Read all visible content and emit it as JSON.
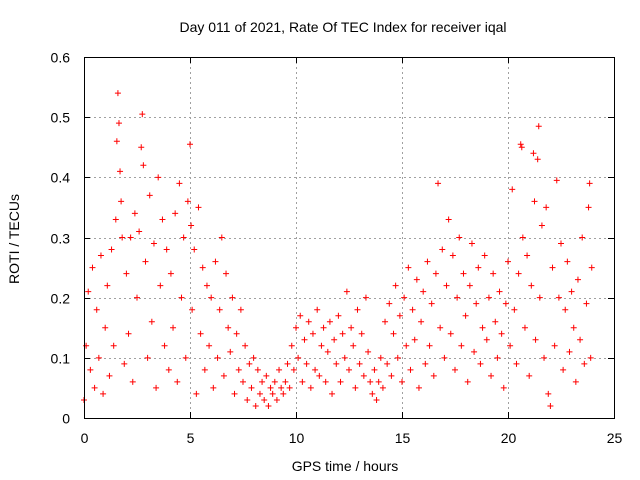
{
  "chart_data": {
    "type": "scatter",
    "title": "Day 011 of 2021, Rate Of TEC Index for receiver iqal",
    "xlabel": "GPS time / hours",
    "ylabel": "ROTI / TECUs",
    "xlim": [
      0,
      25
    ],
    "ylim": [
      0,
      0.6
    ],
    "xticks": [
      0,
      5,
      10,
      15,
      20,
      25
    ],
    "yticks": [
      0,
      0.1,
      0.2,
      0.3,
      0.4,
      0.5,
      0.6
    ],
    "xtick_labels": [
      "0",
      "5",
      "10",
      "15",
      "20",
      "25"
    ],
    "ytick_labels": [
      "0",
      "0.1",
      "0.2",
      "0.3",
      "0.4",
      "0.5",
      "0.6"
    ],
    "grid": true,
    "marker": "plus",
    "color": "#ff0000",
    "series": [
      {
        "points": [
          [
            0.0,
            0.03
          ],
          [
            0.1,
            0.12
          ],
          [
            0.2,
            0.21
          ],
          [
            0.3,
            0.08
          ],
          [
            0.4,
            0.25
          ],
          [
            0.5,
            0.05
          ],
          [
            0.6,
            0.18
          ],
          [
            0.7,
            0.1
          ],
          [
            0.8,
            0.27
          ],
          [
            0.9,
            0.04
          ],
          [
            1.0,
            0.15
          ],
          [
            1.1,
            0.22
          ],
          [
            1.2,
            0.07
          ],
          [
            1.3,
            0.28
          ],
          [
            1.4,
            0.12
          ],
          [
            1.5,
            0.33
          ],
          [
            1.55,
            0.46
          ],
          [
            1.6,
            0.54
          ],
          [
            1.65,
            0.49
          ],
          [
            1.7,
            0.41
          ],
          [
            1.75,
            0.36
          ],
          [
            1.8,
            0.3
          ],
          [
            1.9,
            0.09
          ],
          [
            2.0,
            0.24
          ],
          [
            2.1,
            0.14
          ],
          [
            2.2,
            0.3
          ],
          [
            2.3,
            0.06
          ],
          [
            2.4,
            0.34
          ],
          [
            2.5,
            0.2
          ],
          [
            2.6,
            0.31
          ],
          [
            2.7,
            0.45
          ],
          [
            2.75,
            0.505
          ],
          [
            2.8,
            0.42
          ],
          [
            2.9,
            0.26
          ],
          [
            3.0,
            0.1
          ],
          [
            3.1,
            0.37
          ],
          [
            3.2,
            0.16
          ],
          [
            3.3,
            0.29
          ],
          [
            3.4,
            0.05
          ],
          [
            3.5,
            0.4
          ],
          [
            3.6,
            0.22
          ],
          [
            3.7,
            0.33
          ],
          [
            3.8,
            0.12
          ],
          [
            3.9,
            0.28
          ],
          [
            4.0,
            0.08
          ],
          [
            4.1,
            0.24
          ],
          [
            4.2,
            0.15
          ],
          [
            4.3,
            0.34
          ],
          [
            4.4,
            0.06
          ],
          [
            4.5,
            0.39
          ],
          [
            4.6,
            0.2
          ],
          [
            4.7,
            0.3
          ],
          [
            4.8,
            0.1
          ],
          [
            4.9,
            0.36
          ],
          [
            5.0,
            0.455
          ],
          [
            5.05,
            0.32
          ],
          [
            5.1,
            0.18
          ],
          [
            5.2,
            0.28
          ],
          [
            5.3,
            0.04
          ],
          [
            5.4,
            0.35
          ],
          [
            5.5,
            0.14
          ],
          [
            5.6,
            0.25
          ],
          [
            5.7,
            0.08
          ],
          [
            5.8,
            0.22
          ],
          [
            5.9,
            0.12
          ],
          [
            6.0,
            0.2
          ],
          [
            6.1,
            0.05
          ],
          [
            6.2,
            0.26
          ],
          [
            6.3,
            0.1
          ],
          [
            6.4,
            0.18
          ],
          [
            6.5,
            0.3
          ],
          [
            6.6,
            0.07
          ],
          [
            6.7,
            0.24
          ],
          [
            6.8,
            0.15
          ],
          [
            6.9,
            0.11
          ],
          [
            7.0,
            0.2
          ],
          [
            7.1,
            0.04
          ],
          [
            7.2,
            0.14
          ],
          [
            7.3,
            0.08
          ],
          [
            7.4,
            0.18
          ],
          [
            7.5,
            0.06
          ],
          [
            7.6,
            0.12
          ],
          [
            7.7,
            0.03
          ],
          [
            7.8,
            0.09
          ],
          [
            7.9,
            0.05
          ],
          [
            8.0,
            0.1
          ],
          [
            8.1,
            0.02
          ],
          [
            8.2,
            0.08
          ],
          [
            8.3,
            0.04
          ],
          [
            8.4,
            0.06
          ],
          [
            8.5,
            0.03
          ],
          [
            8.6,
            0.07
          ],
          [
            8.7,
            0.02
          ],
          [
            8.8,
            0.05
          ],
          [
            8.9,
            0.04
          ],
          [
            9.0,
            0.06
          ],
          [
            9.1,
            0.03
          ],
          [
            9.2,
            0.08
          ],
          [
            9.3,
            0.05
          ],
          [
            9.4,
            0.04
          ],
          [
            9.5,
            0.06
          ],
          [
            9.6,
            0.09
          ],
          [
            9.7,
            0.05
          ],
          [
            9.8,
            0.12
          ],
          [
            9.9,
            0.08
          ],
          [
            10.0,
            0.15
          ],
          [
            10.1,
            0.1
          ],
          [
            10.2,
            0.17
          ],
          [
            10.3,
            0.06
          ],
          [
            10.4,
            0.13
          ],
          [
            10.5,
            0.09
          ],
          [
            10.6,
            0.16
          ],
          [
            10.7,
            0.05
          ],
          [
            10.8,
            0.14
          ],
          [
            10.9,
            0.08
          ],
          [
            11.0,
            0.18
          ],
          [
            11.1,
            0.07
          ],
          [
            11.2,
            0.12
          ],
          [
            11.3,
            0.15
          ],
          [
            11.4,
            0.06
          ],
          [
            11.5,
            0.11
          ],
          [
            11.6,
            0.16
          ],
          [
            11.7,
            0.04
          ],
          [
            11.8,
            0.13
          ],
          [
            11.9,
            0.09
          ],
          [
            12.0,
            0.17
          ],
          [
            12.1,
            0.06
          ],
          [
            12.2,
            0.14
          ],
          [
            12.3,
            0.1
          ],
          [
            12.4,
            0.21
          ],
          [
            12.5,
            0.08
          ],
          [
            12.6,
            0.15
          ],
          [
            12.7,
            0.12
          ],
          [
            12.8,
            0.05
          ],
          [
            12.9,
            0.18
          ],
          [
            13.0,
            0.09
          ],
          [
            13.1,
            0.14
          ],
          [
            13.2,
            0.07
          ],
          [
            13.3,
            0.2
          ],
          [
            13.4,
            0.11
          ],
          [
            13.5,
            0.06
          ],
          [
            13.6,
            0.04
          ],
          [
            13.7,
            0.08
          ],
          [
            13.8,
            0.03
          ],
          [
            13.9,
            0.06
          ],
          [
            14.0,
            0.1
          ],
          [
            14.1,
            0.05
          ],
          [
            14.2,
            0.16
          ],
          [
            14.3,
            0.09
          ],
          [
            14.4,
            0.19
          ],
          [
            14.5,
            0.07
          ],
          [
            14.6,
            0.14
          ],
          [
            14.7,
            0.22
          ],
          [
            14.8,
            0.1
          ],
          [
            14.9,
            0.17
          ],
          [
            15.0,
            0.06
          ],
          [
            15.1,
            0.2
          ],
          [
            15.2,
            0.12
          ],
          [
            15.3,
            0.25
          ],
          [
            15.4,
            0.08
          ],
          [
            15.5,
            0.18
          ],
          [
            15.6,
            0.13
          ],
          [
            15.7,
            0.23
          ],
          [
            15.8,
            0.05
          ],
          [
            15.9,
            0.16
          ],
          [
            16.0,
            0.21
          ],
          [
            16.1,
            0.09
          ],
          [
            16.2,
            0.26
          ],
          [
            16.3,
            0.12
          ],
          [
            16.4,
            0.19
          ],
          [
            16.5,
            0.07
          ],
          [
            16.6,
            0.24
          ],
          [
            16.7,
            0.39
          ],
          [
            16.8,
            0.15
          ],
          [
            16.9,
            0.28
          ],
          [
            17.0,
            0.1
          ],
          [
            17.1,
            0.22
          ],
          [
            17.2,
            0.33
          ],
          [
            17.3,
            0.14
          ],
          [
            17.4,
            0.27
          ],
          [
            17.5,
            0.08
          ],
          [
            17.6,
            0.2
          ],
          [
            17.7,
            0.3
          ],
          [
            17.8,
            0.12
          ],
          [
            17.9,
            0.24
          ],
          [
            18.0,
            0.17
          ],
          [
            18.1,
            0.06
          ],
          [
            18.2,
            0.22
          ],
          [
            18.3,
            0.29
          ],
          [
            18.4,
            0.11
          ],
          [
            18.5,
            0.19
          ],
          [
            18.6,
            0.25
          ],
          [
            18.7,
            0.09
          ],
          [
            18.8,
            0.15
          ],
          [
            18.9,
            0.27
          ],
          [
            19.0,
            0.13
          ],
          [
            19.1,
            0.2
          ],
          [
            19.2,
            0.07
          ],
          [
            19.3,
            0.24
          ],
          [
            19.4,
            0.16
          ],
          [
            19.5,
            0.1
          ],
          [
            19.6,
            0.21
          ],
          [
            19.7,
            0.14
          ],
          [
            19.8,
            0.05
          ],
          [
            19.9,
            0.19
          ],
          [
            20.0,
            0.26
          ],
          [
            20.1,
            0.12
          ],
          [
            20.2,
            0.38
          ],
          [
            20.3,
            0.18
          ],
          [
            20.4,
            0.09
          ],
          [
            20.5,
            0.24
          ],
          [
            20.6,
            0.455
          ],
          [
            20.65,
            0.45
          ],
          [
            20.7,
            0.3
          ],
          [
            20.8,
            0.15
          ],
          [
            20.9,
            0.27
          ],
          [
            21.0,
            0.07
          ],
          [
            21.1,
            0.22
          ],
          [
            21.2,
            0.44
          ],
          [
            21.25,
            0.36
          ],
          [
            21.3,
            0.13
          ],
          [
            21.4,
            0.43
          ],
          [
            21.45,
            0.485
          ],
          [
            21.5,
            0.2
          ],
          [
            21.6,
            0.32
          ],
          [
            21.7,
            0.1
          ],
          [
            21.8,
            0.35
          ],
          [
            21.9,
            0.04
          ],
          [
            22.0,
            0.02
          ],
          [
            22.1,
            0.25
          ],
          [
            22.2,
            0.12
          ],
          [
            22.3,
            0.395
          ],
          [
            22.4,
            0.2
          ],
          [
            22.5,
            0.29
          ],
          [
            22.6,
            0.08
          ],
          [
            22.7,
            0.18
          ],
          [
            22.8,
            0.26
          ],
          [
            22.9,
            0.11
          ],
          [
            23.0,
            0.21
          ],
          [
            23.1,
            0.15
          ],
          [
            23.2,
            0.06
          ],
          [
            23.3,
            0.23
          ],
          [
            23.4,
            0.13
          ],
          [
            23.5,
            0.3
          ],
          [
            23.6,
            0.09
          ],
          [
            23.7,
            0.19
          ],
          [
            23.8,
            0.35
          ],
          [
            23.85,
            0.39
          ],
          [
            23.9,
            0.1
          ],
          [
            23.95,
            0.25
          ]
        ]
      }
    ]
  }
}
